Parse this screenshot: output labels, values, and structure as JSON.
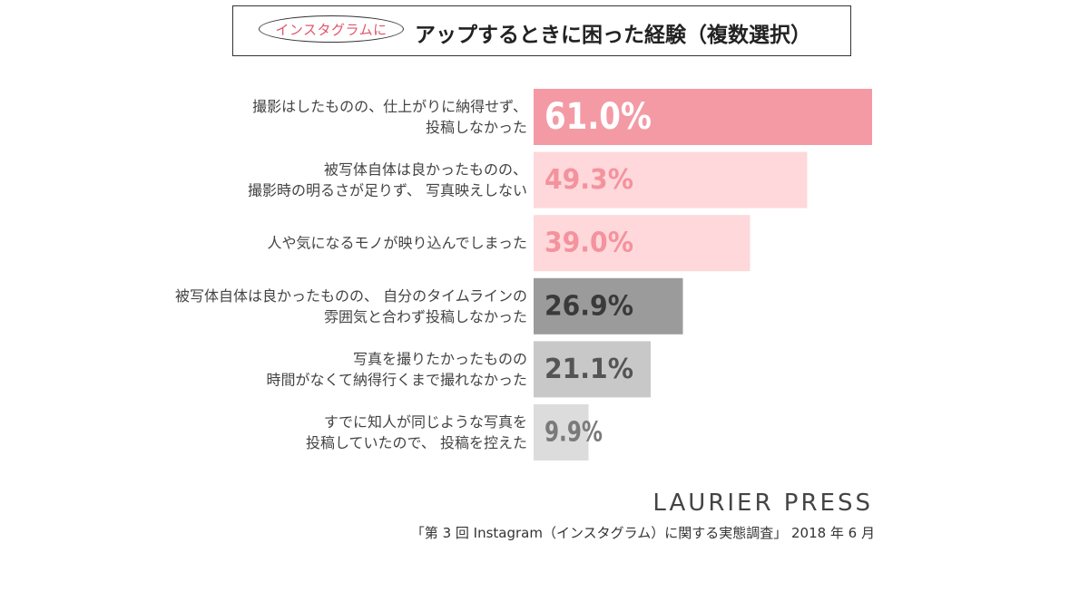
{
  "header": {
    "badge": "インスタグラムに",
    "title": "アップするときに困った経験（複数選択）"
  },
  "chart_data": {
    "type": "bar",
    "orientation": "horizontal",
    "title": "インスタグラムにアップするときに困った経験（複数選択）",
    "unit": "%",
    "xlim": [
      0,
      61
    ],
    "grid": false,
    "legend": "none",
    "categories": [
      [
        "撮影はしたものの、仕上がりに納得せず、",
        "投稿しなかった"
      ],
      [
        "被写体自体は良かったものの、",
        "撮影時の明るさが足りず、 写真映えしない"
      ],
      [
        "人や気になるモノが映り込んでしまった"
      ],
      [
        "被写体自体は良かったものの、 自分のタイムラインの",
        "雰囲気と合わず投稿しなかった"
      ],
      [
        "写真を撮りたかったものの",
        "時間がなくて納得行くまで撮れなかった"
      ],
      [
        "すでに知人が同じような写真を",
        "投稿していたので、 投稿を控えた"
      ]
    ],
    "values": [
      61.0,
      49.3,
      39.0,
      26.9,
      21.1,
      9.9
    ],
    "value_labels": [
      "61.0%",
      "49.3%",
      "39.0%",
      "26.9%",
      "21.1%",
      "9.9%"
    ],
    "bar_colors": [
      "#f49aa5",
      "#fed8da",
      "#fed8da",
      "#9b9b9b",
      "#c8c8c8",
      "#dcdcdc"
    ],
    "label_colors": [
      "#ffffff",
      "#f4929e",
      "#f4929e",
      "#3a3a3a",
      "#555555",
      "#7a7a7a"
    ]
  },
  "source": {
    "brand": "LAURIER PRESS",
    "note": "「第 3 回 Instagram（インスタグラム）に関する実態調査」 2018 年 6 月"
  }
}
